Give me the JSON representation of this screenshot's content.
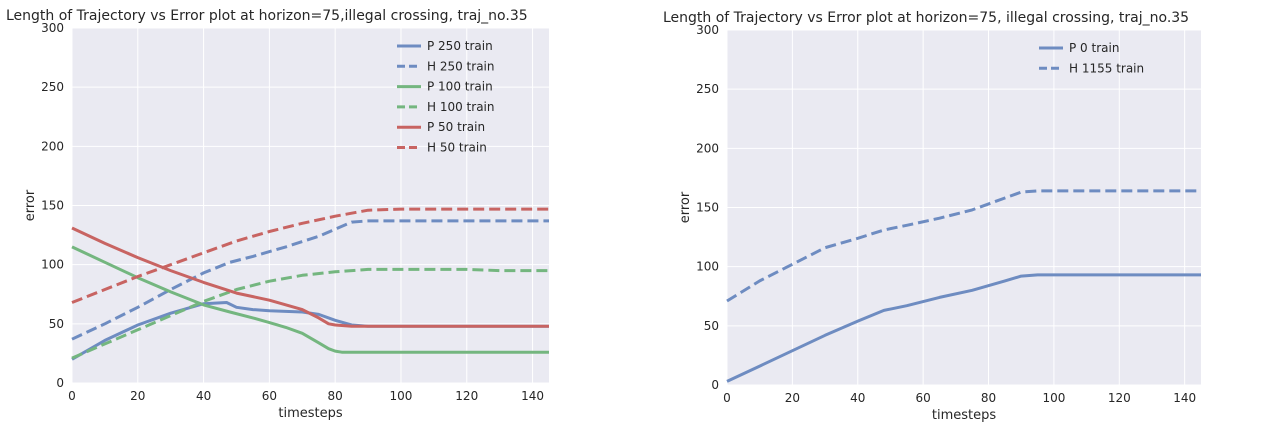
{
  "chart_data": [
    {
      "type": "line",
      "title": "Length of Trajectory vs Error plot at horizon=75,illegal crossing, traj_no.35",
      "xlabel": "timesteps",
      "ylabel": "error",
      "xlim": [
        0,
        145
      ],
      "ylim": [
        0,
        300
      ],
      "xticks": [
        0,
        20,
        40,
        60,
        80,
        100,
        120,
        140
      ],
      "yticks": [
        0,
        50,
        100,
        150,
        200,
        250,
        300
      ],
      "grid": true,
      "legend_position": "top-right",
      "series": [
        {
          "name": "P 250 train",
          "color": "#6e8cc1",
          "dash": "solid",
          "x": [
            0,
            10,
            20,
            30,
            40,
            47,
            50,
            55,
            60,
            70,
            75,
            80,
            85,
            90,
            100,
            110,
            120,
            130,
            145
          ],
          "y": [
            20,
            36,
            49,
            59,
            67,
            68,
            64,
            62,
            61,
            60,
            58,
            53,
            49,
            48,
            48,
            48,
            48,
            48,
            48
          ]
        },
        {
          "name": "H 250 train",
          "color": "#6e8cc1",
          "dash": "dashed",
          "x": [
            0,
            10,
            20,
            30,
            40,
            48,
            55,
            65,
            75,
            80,
            85,
            90,
            100,
            110,
            120,
            130,
            145
          ],
          "y": [
            37,
            50,
            64,
            79,
            93,
            102,
            107,
            115,
            124,
            130,
            136,
            137,
            137,
            137,
            137,
            137,
            137
          ]
        },
        {
          "name": "P 100 train",
          "color": "#74b67f",
          "dash": "solid",
          "x": [
            0,
            10,
            20,
            30,
            40,
            48,
            55,
            60,
            65,
            70,
            75,
            78,
            80,
            82,
            85,
            90,
            100,
            110,
            120,
            130,
            145
          ],
          "y": [
            115,
            102,
            89,
            77,
            66,
            60,
            55,
            51,
            47,
            42,
            34,
            29,
            27,
            26,
            26,
            26,
            26,
            26,
            26,
            26,
            26
          ]
        },
        {
          "name": "H 100 train",
          "color": "#74b67f",
          "dash": "dashed",
          "x": [
            0,
            10,
            20,
            30,
            40,
            50,
            60,
            70,
            80,
            90,
            100,
            110,
            120,
            130,
            145
          ],
          "y": [
            21,
            33,
            45,
            57,
            69,
            79,
            86,
            91,
            94,
            96,
            96,
            96,
            96,
            95,
            95
          ]
        },
        {
          "name": "P 50 train",
          "color": "#c86462",
          "dash": "solid",
          "x": [
            0,
            10,
            20,
            30,
            40,
            50,
            60,
            70,
            75,
            78,
            80,
            85,
            90,
            100,
            110,
            120,
            130,
            145
          ],
          "y": [
            131,
            118,
            106,
            95,
            85,
            76,
            70,
            62,
            55,
            50,
            49,
            48,
            48,
            48,
            48,
            48,
            48,
            48
          ]
        },
        {
          "name": "H 50 train",
          "color": "#c86462",
          "dash": "dashed",
          "x": [
            0,
            10,
            20,
            30,
            40,
            50,
            60,
            70,
            80,
            90,
            100,
            110,
            120,
            130,
            145
          ],
          "y": [
            68,
            79,
            90,
            100,
            110,
            120,
            128,
            135,
            141,
            146,
            147,
            147,
            147,
            147,
            147
          ]
        }
      ]
    },
    {
      "type": "line",
      "title": "Length of Trajectory vs Error plot at horizon=75, illegal crossing, traj_no.35",
      "xlabel": "timesteps",
      "ylabel": "error",
      "xlim": [
        0,
        145
      ],
      "ylim": [
        0,
        300
      ],
      "xticks": [
        0,
        20,
        40,
        60,
        80,
        100,
        120,
        140
      ],
      "yticks": [
        0,
        50,
        100,
        150,
        200,
        250,
        300
      ],
      "grid": true,
      "legend_position": "top-right",
      "series": [
        {
          "name": "P 0 train",
          "color": "#6e8cc1",
          "dash": "solid",
          "x": [
            0,
            10,
            20,
            30,
            40,
            48,
            55,
            65,
            75,
            85,
            90,
            95,
            100,
            110,
            120,
            130,
            145
          ],
          "y": [
            3,
            16,
            29,
            42,
            54,
            63,
            67,
            74,
            80,
            88,
            92,
            93,
            93,
            93,
            93,
            93,
            93
          ]
        },
        {
          "name": "H 1155 train",
          "color": "#6e8cc1",
          "dash": "dashed",
          "x": [
            0,
            10,
            20,
            30,
            40,
            48,
            55,
            65,
            75,
            85,
            90,
            95,
            100,
            110,
            120,
            130,
            145
          ],
          "y": [
            71,
            88,
            102,
            116,
            124,
            131,
            135,
            141,
            148,
            158,
            163,
            164,
            164,
            164,
            164,
            164,
            164
          ]
        }
      ]
    }
  ]
}
